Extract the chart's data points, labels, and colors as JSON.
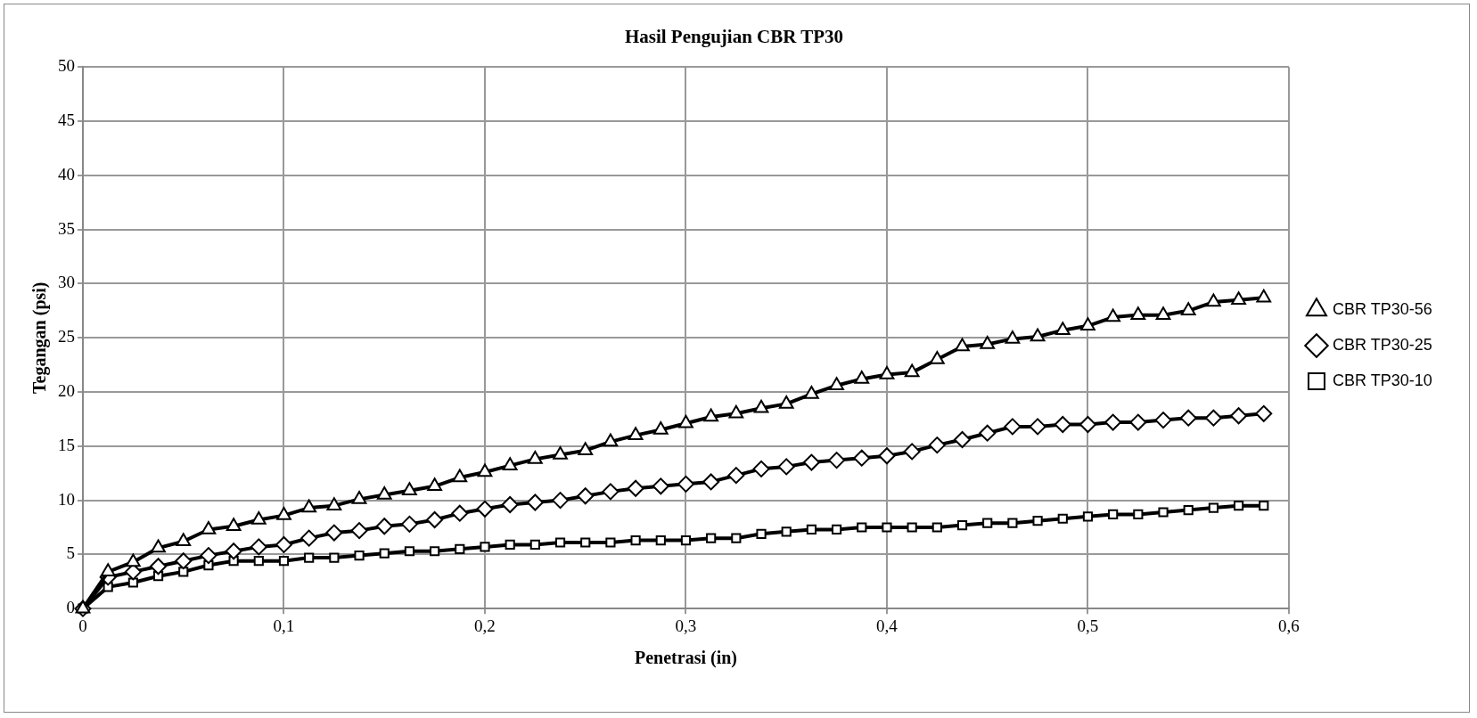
{
  "chart_data": {
    "type": "line",
    "title": "Hasil Pengujian CBR TP30",
    "xlabel": "Penetrasi (in)",
    "ylabel": "Tegangan (psi)",
    "x": [
      0,
      0.0125,
      0.025,
      0.0375,
      0.05,
      0.0625,
      0.075,
      0.0875,
      0.1,
      0.1125,
      0.125,
      0.1375,
      0.15,
      0.1625,
      0.175,
      0.1875,
      0.2,
      0.2125,
      0.225,
      0.2375,
      0.25,
      0.2625,
      0.275,
      0.2875,
      0.3,
      0.3125,
      0.325,
      0.3375,
      0.35,
      0.3625,
      0.375,
      0.3875,
      0.4,
      0.4125,
      0.425,
      0.4375,
      0.45,
      0.4625,
      0.475,
      0.4875,
      0.5,
      0.5125,
      0.525,
      0.5375,
      0.55,
      0.5625,
      0.575,
      0.5875
    ],
    "series": [
      {
        "name": "CBR TP30-10",
        "color": "#000000",
        "marker": "square",
        "values": [
          0,
          2.0,
          2.4,
          3.0,
          3.4,
          4.0,
          4.4,
          4.4,
          4.4,
          4.7,
          4.7,
          4.9,
          5.1,
          5.3,
          5.3,
          5.5,
          5.7,
          5.9,
          5.9,
          6.1,
          6.1,
          6.1,
          6.3,
          6.3,
          6.3,
          6.5,
          6.5,
          6.9,
          7.1,
          7.3,
          7.3,
          7.5,
          7.5,
          7.5,
          7.5,
          7.7,
          7.9,
          7.9,
          8.1,
          8.3,
          8.5,
          8.7,
          8.7,
          8.9,
          9.1,
          9.3,
          9.5,
          9.5
        ]
      },
      {
        "name": "CBR TP30-25",
        "color": "#000000",
        "marker": "diamond",
        "values": [
          0,
          2.9,
          3.4,
          3.9,
          4.4,
          4.9,
          5.3,
          5.7,
          5.9,
          6.5,
          7.0,
          7.2,
          7.6,
          7.8,
          8.2,
          8.8,
          9.2,
          9.6,
          9.8,
          10.0,
          10.4,
          10.8,
          11.1,
          11.3,
          11.5,
          11.7,
          12.3,
          12.9,
          13.1,
          13.5,
          13.7,
          13.9,
          14.1,
          14.5,
          15.1,
          15.6,
          16.2,
          16.8,
          16.8,
          17.0,
          17.0,
          17.2,
          17.2,
          17.4,
          17.6,
          17.6,
          17.8,
          18.0
        ]
      },
      {
        "name": "CBR TP30-56",
        "color": "#000000",
        "marker": "triangle",
        "values": [
          0,
          3.4,
          4.3,
          5.6,
          6.2,
          7.3,
          7.6,
          8.2,
          8.6,
          9.3,
          9.5,
          10.1,
          10.5,
          10.9,
          11.3,
          12.1,
          12.6,
          13.2,
          13.8,
          14.2,
          14.6,
          15.4,
          16.0,
          16.5,
          17.1,
          17.7,
          18.0,
          18.5,
          18.9,
          19.8,
          20.6,
          21.2,
          21.6,
          21.8,
          23.0,
          24.2,
          24.4,
          24.9,
          25.1,
          25.7,
          26.1,
          26.9,
          27.1,
          27.1,
          27.5,
          28.3,
          28.5,
          28.7
        ]
      }
    ],
    "xlim": [
      0,
      0.6
    ],
    "xticks": [
      {
        "value": 0,
        "label": "0"
      },
      {
        "value": 0.1,
        "label": "0,1"
      },
      {
        "value": 0.2,
        "label": "0,2"
      },
      {
        "value": 0.3,
        "label": "0,3"
      },
      {
        "value": 0.4,
        "label": "0,4"
      },
      {
        "value": 0.5,
        "label": "0,5"
      },
      {
        "value": 0.6,
        "label": "0,6"
      }
    ],
    "ylim": [
      0,
      50
    ],
    "yticks": [
      0,
      5,
      10,
      15,
      20,
      25,
      30,
      35,
      40,
      45,
      50
    ],
    "grid": true,
    "legend": "right",
    "line_style": "solid"
  }
}
